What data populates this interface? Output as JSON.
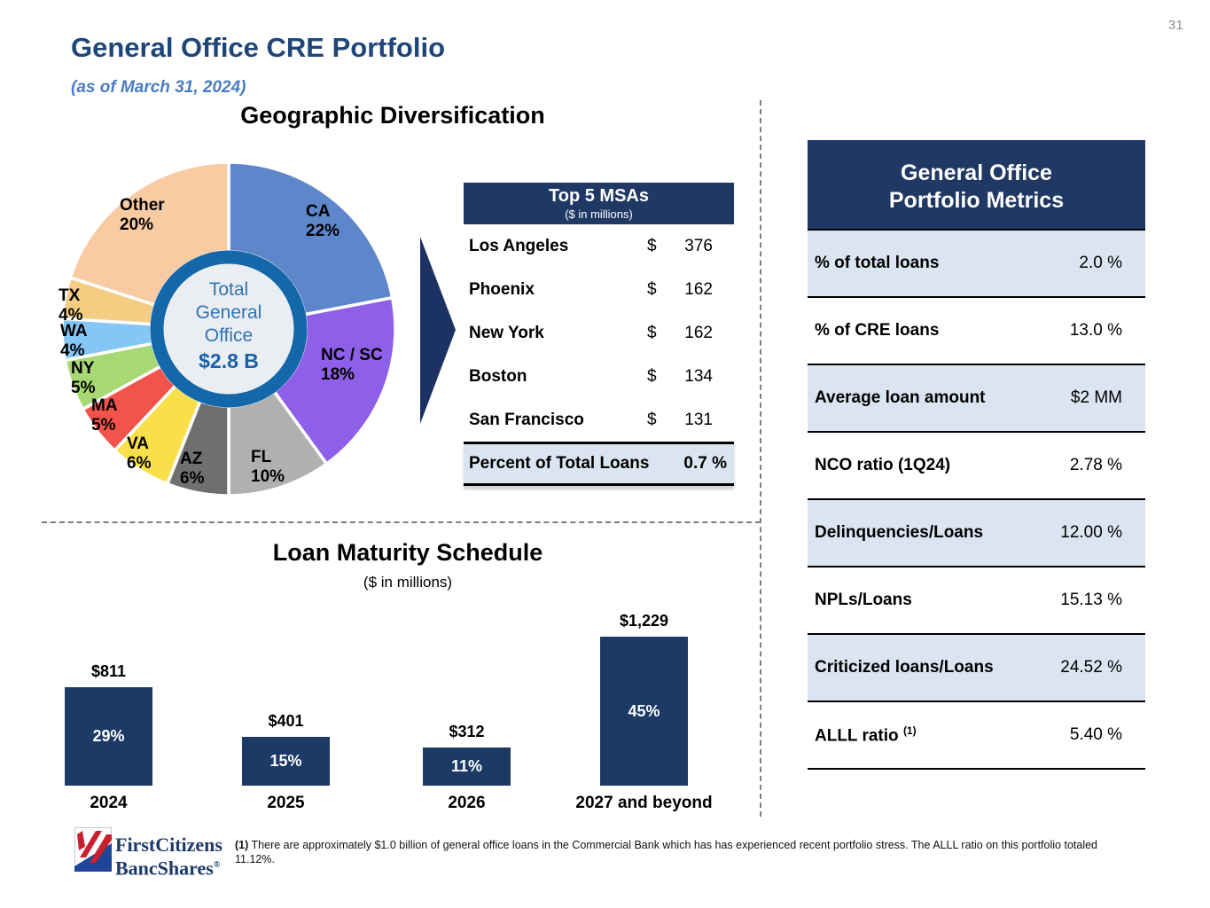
{
  "page": {
    "number": "31"
  },
  "header": {
    "title": "General Office CRE Portfolio",
    "subtitle": "(as of March 31, 2024)"
  },
  "geo": {
    "heading": "Geographic Diversification",
    "center": {
      "line1": "Total",
      "line2": "General",
      "line3": "Office",
      "amount": "$2.8 B"
    }
  },
  "chart_data": [
    {
      "type": "pie",
      "title": "Geographic Diversification",
      "center_label": "Total General Office $2.8 B",
      "slices": [
        {
          "label": "CA",
          "value": 22,
          "pct_label": "22%",
          "color": "#5E86CB"
        },
        {
          "label": "NC / SC",
          "value": 18,
          "pct_label": "18%",
          "color": "#8E5FE8"
        },
        {
          "label": "FL",
          "value": 10,
          "pct_label": "10%",
          "color": "#B0B0B0"
        },
        {
          "label": "AZ",
          "value": 6,
          "pct_label": "6%",
          "color": "#6F6F6F"
        },
        {
          "label": "VA",
          "value": 6,
          "pct_label": "6%",
          "color": "#F9E04A"
        },
        {
          "label": "MA",
          "value": 5,
          "pct_label": "5%",
          "color": "#F2544B"
        },
        {
          "label": "NY",
          "value": 5,
          "pct_label": "5%",
          "color": "#A7D873"
        },
        {
          "label": "WA",
          "value": 4,
          "pct_label": "4%",
          "color": "#85C6F4"
        },
        {
          "label": "TX",
          "value": 4,
          "pct_label": "4%",
          "color": "#F4CC82"
        },
        {
          "label": "Other",
          "value": 20,
          "pct_label": "20%",
          "color": "#F9CBA2"
        }
      ]
    },
    {
      "type": "bar",
      "title": "Loan Maturity Schedule",
      "subtitle": "($ in millions)",
      "categories": [
        "2024",
        "2025",
        "2026",
        "2027 and beyond"
      ],
      "values": [
        811,
        401,
        312,
        1229
      ],
      "value_labels": [
        "$811",
        "$401",
        "$312",
        "$1,229"
      ],
      "pct_labels": [
        "29%",
        "15%",
        "11%",
        "45%"
      ],
      "bar_color": "#1B3A66",
      "ylim": [
        0,
        1229
      ],
      "grid": false
    }
  ],
  "msa_table": {
    "title": "Top 5 MSAs",
    "units": "($ in millions)",
    "currency": "$",
    "rows": [
      {
        "name": "Los Angeles",
        "value": "376"
      },
      {
        "name": "Phoenix",
        "value": "162"
      },
      {
        "name": "New York",
        "value": "162"
      },
      {
        "name": "Boston",
        "value": "134"
      },
      {
        "name": "San Francisco",
        "value": "131"
      }
    ],
    "footer": {
      "label": "Percent of Total Loans",
      "value": "0.7 %"
    }
  },
  "metrics": {
    "title_line1": "General Office",
    "title_line2": "Portfolio Metrics",
    "rows": [
      {
        "label": "% of total loans",
        "value": "2.0 %"
      },
      {
        "label": "% of CRE loans",
        "value": "13.0 %"
      },
      {
        "label": "Average loan amount",
        "value": "$2 MM"
      },
      {
        "label": "NCO ratio (1Q24)",
        "value": "2.78 %"
      },
      {
        "label": "Delinquencies/Loans",
        "value": "12.00 %"
      },
      {
        "label": "NPLs/Loans",
        "value": "15.13 %"
      },
      {
        "label": "Criticized loans/Loans",
        "value": "24.52 %"
      },
      {
        "label": "ALLL ratio",
        "sup": "(1)",
        "value": "5.40 %"
      }
    ]
  },
  "maturity": {
    "heading": "Loan Maturity Schedule",
    "subheading": "($ in millions)"
  },
  "footer": {
    "logo_line1": "FirstCitizens",
    "logo_line2": "BancShares",
    "logo_reg": "®",
    "footnote_marker": "(1)",
    "footnote_text": " There are approximately $1.0 billion of general office loans in the Commercial Bank which has has experienced recent portfolio stress.  The ALLL ratio on this portfolio totaled 11.12%."
  },
  "colors": {
    "navy_header": "#1F3864",
    "light_blue_row": "#DBE5F1",
    "title_blue": "#1F4679",
    "subtitle_blue": "#4A7CC3",
    "ring_blue": "#1467A8",
    "center_fill": "#EAEEF2",
    "center_text_blue": "#2E74B6",
    "bar_navy": "#1B3A66",
    "divider_gray": "#7f7f7f",
    "logo_red": "#C8202E",
    "logo_blue": "#1E4598"
  }
}
